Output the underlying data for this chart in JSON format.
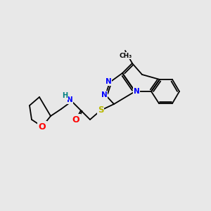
{
  "bg_color": "#e8e8e8",
  "bond_color": "#000000",
  "atom_colors": {
    "O": "#ff0000",
    "N": "#0000ff",
    "S": "#b8b800",
    "H_label": "#008080",
    "C": "#000000"
  },
  "font_size": 7.5,
  "line_width": 1.3
}
